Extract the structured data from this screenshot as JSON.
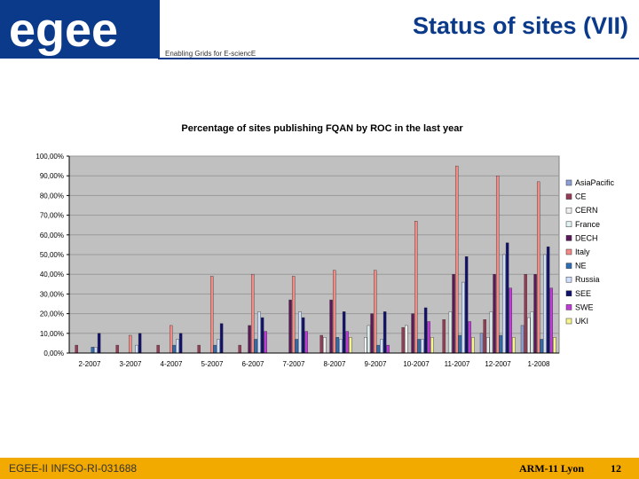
{
  "header": {
    "logo_text": "egee",
    "title": "Status of sites (VII)",
    "tagline": "Enabling Grids for E-sciencE"
  },
  "footer": {
    "left": "EGEE-II INFSO-RI-031688",
    "middle": "ARM-11 Lyon",
    "page": "12"
  },
  "colors": {
    "brand_blue": "#0b3a8a",
    "footer_orange": "#f2a900",
    "plot_bg": "#c0c0c0"
  },
  "chart_data": {
    "type": "bar",
    "title": "Percentage of sites publishing FQAN by ROC in the last year",
    "xlabel": "",
    "ylabel": "",
    "ylim": [
      0,
      100
    ],
    "y_ticks": [
      "0,00%",
      "10,00%",
      "20,00%",
      "30,00%",
      "40,00%",
      "50,00%",
      "60,00%",
      "70,00%",
      "80,00%",
      "90,00%",
      "100,00%"
    ],
    "grid": true,
    "legend_position": "right",
    "categories": [
      "2-2007",
      "3-2007",
      "4-2007",
      "5-2007",
      "6-2007",
      "7-2007",
      "8-2007",
      "9-2007",
      "10-2007",
      "11-2007",
      "12-2007",
      "1-2008"
    ],
    "series": [
      {
        "name": "AsiaPacific",
        "color": "#8e9fd6",
        "values": [
          0,
          0,
          0,
          0,
          0,
          0,
          0,
          0,
          0,
          0,
          10,
          14
        ]
      },
      {
        "name": "CE",
        "color": "#963b55",
        "values": [
          4,
          4,
          4,
          4,
          4,
          0,
          9,
          0,
          13,
          17,
          17,
          40
        ]
      },
      {
        "name": "CERN",
        "color": "#f0f0f0",
        "values": [
          0,
          0,
          0,
          0,
          0,
          0,
          8,
          8,
          14,
          0,
          8,
          18
        ]
      },
      {
        "name": "France",
        "color": "#e2f2f2",
        "values": [
          0,
          0,
          0,
          0,
          0,
          0,
          0,
          14,
          0,
          21,
          21,
          21
        ]
      },
      {
        "name": "DECH",
        "color": "#5a1a5a",
        "values": [
          0,
          0,
          0,
          0,
          14,
          27,
          27,
          20,
          20,
          40,
          40,
          40
        ]
      },
      {
        "name": "Italy",
        "color": "#f28a86",
        "values": [
          0,
          9,
          14,
          39,
          40,
          39,
          42,
          42,
          67,
          95,
          90,
          87
        ]
      },
      {
        "name": "NE",
        "color": "#2e6db4",
        "values": [
          3,
          0,
          4,
          4,
          7,
          7,
          8,
          4,
          7,
          9,
          9,
          7
        ]
      },
      {
        "name": "Russia",
        "color": "#cfe0ff",
        "values": [
          3,
          4,
          7,
          7,
          21,
          21,
          7,
          7,
          7,
          36,
          50,
          50
        ]
      },
      {
        "name": "SEE",
        "color": "#10106e",
        "values": [
          10,
          10,
          10,
          15,
          18,
          18,
          21,
          21,
          23,
          49,
          56,
          54
        ]
      },
      {
        "name": "SWE",
        "color": "#c03ad6",
        "values": [
          0,
          0,
          0,
          0,
          11,
          11,
          11,
          4,
          16,
          16,
          33,
          33
        ]
      },
      {
        "name": "UKI",
        "color": "#f5f58a",
        "values": [
          0,
          0,
          0,
          0,
          0,
          0,
          8,
          0,
          8,
          8,
          8,
          8
        ]
      }
    ]
  }
}
